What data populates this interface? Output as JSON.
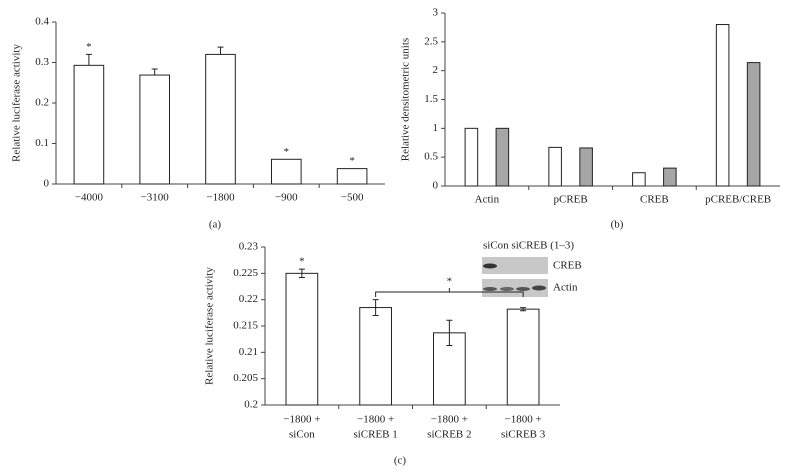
{
  "chart_data": [
    {
      "type": "bar",
      "panel_label": "(a)",
      "y_label": "Relative luciferase activity",
      "categories": [
        "−4000",
        "−3100",
        "−1800",
        "−900",
        "−500"
      ],
      "values": [
        0.293,
        0.269,
        0.32,
        0.061,
        0.038
      ],
      "errors": [
        0.027,
        0.015,
        0.018,
        0,
        0
      ],
      "markers": [
        "*",
        null,
        null,
        "*",
        "*"
      ],
      "color": "#ffffff",
      "ylim": [
        0,
        0.4
      ],
      "yticks": [
        0,
        0.1,
        0.2,
        0.3,
        0.4
      ]
    },
    {
      "type": "grouped-bar",
      "panel_label": "(b)",
      "y_label": "Relative densitometric units",
      "categories": [
        "Actin",
        "pCREB",
        "CREB",
        "pCREB/CREB"
      ],
      "series": [
        {
          "color": "#ffffff",
          "values": [
            1.0,
            0.67,
            0.23,
            2.8
          ]
        },
        {
          "color": "#a6a6a6",
          "values": [
            1.0,
            0.66,
            0.31,
            2.14
          ]
        }
      ],
      "ylim": [
        0,
        3
      ],
      "yticks": [
        0,
        0.5,
        1,
        1.5,
        2,
        2.5,
        3
      ]
    },
    {
      "type": "bar",
      "panel_label": "(c)",
      "y_label": "Relative luciferase activity",
      "categories": [
        [
          "−1800 +",
          "siCon"
        ],
        [
          "−1800 +",
          "siCREB 1"
        ],
        [
          "−1800 +",
          "siCREB 2"
        ],
        [
          "−1800 +",
          "siCREB 3"
        ]
      ],
      "values": [
        0.225,
        0.2185,
        0.2137,
        0.2182
      ],
      "errors": [
        0.0008,
        0.0015,
        0.0024,
        0.0003
      ],
      "markers": [
        "*",
        null,
        null,
        null
      ],
      "bracket_label": "*",
      "inset": {
        "header": "siCon siCREB (1–3)",
        "rows": [
          "CREB",
          "Actin"
        ]
      },
      "color": "#ffffff",
      "ylim": [
        0.2,
        0.23
      ],
      "yticks": [
        0.2,
        0.205,
        0.21,
        0.215,
        0.22,
        0.225,
        0.23
      ]
    }
  ]
}
